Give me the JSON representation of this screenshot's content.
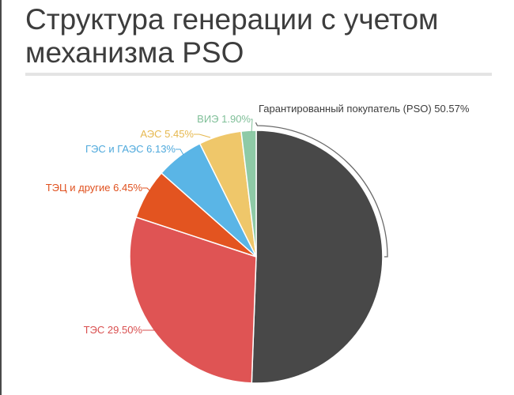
{
  "title": "Структура генерации с учетом механизма PSO",
  "chart_data": {
    "type": "pie",
    "title": "Структура генерации с учетом механизма PSO",
    "slices": [
      {
        "label": "Гарантированный покупатель (PSO) 50.57%",
        "name": "Гарантированный покупатель (PSO)",
        "value": 50.57,
        "color": "#484848",
        "label_color": "#3c3c3c"
      },
      {
        "label": "ТЭС 29.50%",
        "name": "ТЭС",
        "value": 29.5,
        "color": "#df5454",
        "label_color": "#d94f4f"
      },
      {
        "label": "ТЭЦ и другие 6.45%",
        "name": "ТЭЦ и другие",
        "value": 6.45,
        "color": "#e35420",
        "label_color": "#e0511f"
      },
      {
        "label": "ГЭС и ГАЭС 6.13%",
        "name": "ГЭС и ГАЭС",
        "value": 6.13,
        "color": "#5ab5e6",
        "label_color": "#4fa9dc"
      },
      {
        "label": "АЭС 5.45%",
        "name": "АЭС",
        "value": 5.45,
        "color": "#efc76a",
        "label_color": "#e6b84f"
      },
      {
        "label": "ВИЭ 1.90%",
        "name": "ВИЭ",
        "value": 1.9,
        "color": "#8ecaa6",
        "label_color": "#7fbf98"
      }
    ],
    "start_angle": "12 o'clock",
    "direction": "clockwise",
    "legend": "none"
  }
}
